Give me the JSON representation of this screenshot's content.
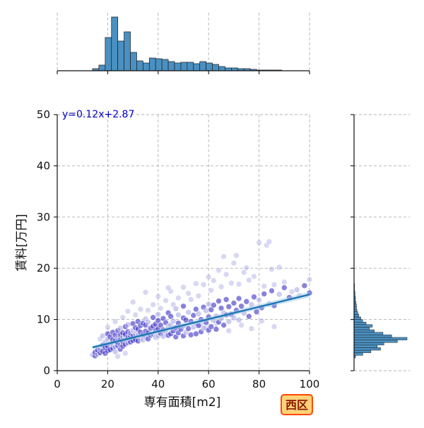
{
  "chart_data": {
    "type": "scatter",
    "xlabel": "専有面積[m2]",
    "ylabel": "賃料[万円]",
    "xlim": [
      0,
      100
    ],
    "ylim": [
      0,
      50
    ],
    "xticks": [
      "0",
      "20",
      "40",
      "60",
      "80",
      "100"
    ],
    "yticks": [
      "0",
      "10",
      "20",
      "30",
      "40",
      "50"
    ],
    "grid": true,
    "annotation": "y=0.12x+2.87",
    "ward_label": "西区",
    "regression": {
      "slope": 0.12,
      "intercept": 2.87,
      "x_range": [
        14,
        100
      ]
    },
    "colors": {
      "points": "#3a2fc4",
      "points_light": "#8f8fdc",
      "line": "#1f77b4",
      "hist": "#4a90c2",
      "ci": "#a6cbe8"
    },
    "points": [
      [
        14,
        3.1
      ],
      [
        15,
        2.9
      ],
      [
        15,
        3.6
      ],
      [
        16,
        3.2
      ],
      [
        16,
        4.0
      ],
      [
        17,
        3.5
      ],
      [
        17,
        4.2
      ],
      [
        18,
        3.8
      ],
      [
        18,
        5.0
      ],
      [
        18,
        6.8
      ],
      [
        19,
        3.4
      ],
      [
        19,
        4.5
      ],
      [
        19,
        5.6
      ],
      [
        20,
        3.9
      ],
      [
        20,
        4.8
      ],
      [
        20,
        6.2
      ],
      [
        20,
        7.2
      ],
      [
        21,
        4.1
      ],
      [
        21,
        5.3
      ],
      [
        21,
        6.6
      ],
      [
        22,
        4.4
      ],
      [
        22,
        5.1
      ],
      [
        22,
        6.0
      ],
      [
        22,
        7.5
      ],
      [
        23,
        4.6
      ],
      [
        23,
        5.8
      ],
      [
        23,
        6.9
      ],
      [
        23,
        3.7
      ],
      [
        24,
        4.9
      ],
      [
        24,
        5.5
      ],
      [
        24,
        6.3
      ],
      [
        24,
        7.8
      ],
      [
        25,
        4.2
      ],
      [
        25,
        5.0
      ],
      [
        25,
        6.1
      ],
      [
        25,
        7.0
      ],
      [
        25,
        8.3
      ],
      [
        26,
        4.8
      ],
      [
        26,
        5.7
      ],
      [
        26,
        6.5
      ],
      [
        26,
        7.4
      ],
      [
        27,
        5.2
      ],
      [
        27,
        6.0
      ],
      [
        27,
        7.1
      ],
      [
        27,
        8.6
      ],
      [
        28,
        5.4
      ],
      [
        28,
        6.4
      ],
      [
        28,
        7.6
      ],
      [
        28,
        9.0
      ],
      [
        29,
        5.6
      ],
      [
        29,
        6.8
      ],
      [
        29,
        7.3
      ],
      [
        30,
        5.9
      ],
      [
        30,
        6.7
      ],
      [
        30,
        7.9
      ],
      [
        30,
        9.2
      ],
      [
        31,
        6.1
      ],
      [
        31,
        7.2
      ],
      [
        31,
        8.4
      ],
      [
        32,
        5.8
      ],
      [
        32,
        6.9
      ],
      [
        32,
        8.1
      ],
      [
        32,
        9.6
      ],
      [
        33,
        6.3
      ],
      [
        33,
        7.5
      ],
      [
        33,
        8.8
      ],
      [
        34,
        6.0
      ],
      [
        34,
        7.0
      ],
      [
        34,
        9.3
      ],
      [
        35,
        6.6
      ],
      [
        35,
        7.7
      ],
      [
        35,
        8.9
      ],
      [
        35,
        10.1
      ],
      [
        36,
        6.2
      ],
      [
        36,
        7.4
      ],
      [
        36,
        9.5
      ],
      [
        37,
        6.9
      ],
      [
        37,
        8.3
      ],
      [
        38,
        7.1
      ],
      [
        38,
        8.7
      ],
      [
        38,
        10.4
      ],
      [
        39,
        6.5
      ],
      [
        39,
        7.9
      ],
      [
        39,
        9.1
      ],
      [
        40,
        6.8
      ],
      [
        40,
        8.2
      ],
      [
        40,
        9.8
      ],
      [
        40,
        11.0
      ],
      [
        41,
        7.3
      ],
      [
        41,
        8.9
      ],
      [
        42,
        6.7
      ],
      [
        42,
        8.0
      ],
      [
        42,
        10.2
      ],
      [
        43,
        7.6
      ],
      [
        43,
        9.4
      ],
      [
        44,
        6.9
      ],
      [
        44,
        8.6
      ],
      [
        44,
        11.3
      ],
      [
        45,
        7.2
      ],
      [
        45,
        9.0
      ],
      [
        45,
        10.6
      ],
      [
        46,
        7.8
      ],
      [
        46,
        9.7
      ],
      [
        47,
        6.6
      ],
      [
        47,
        8.4
      ],
      [
        47,
        12.1
      ],
      [
        48,
        7.4
      ],
      [
        48,
        9.3
      ],
      [
        48,
        10.9
      ],
      [
        49,
        8.1
      ],
      [
        50,
        6.8
      ],
      [
        50,
        8.7
      ],
      [
        50,
        10.3
      ],
      [
        50,
        12.6
      ],
      [
        51,
        7.5
      ],
      [
        51,
        9.9
      ],
      [
        52,
        8.2
      ],
      [
        52,
        11.4
      ],
      [
        53,
        7.0
      ],
      [
        53,
        9.6
      ],
      [
        54,
        8.5
      ],
      [
        54,
        10.8
      ],
      [
        55,
        7.2
      ],
      [
        55,
        9.2
      ],
      [
        55,
        12.0
      ],
      [
        56,
        8.8
      ],
      [
        56,
        11.1
      ],
      [
        57,
        7.6
      ],
      [
        57,
        10.0
      ],
      [
        58,
        8.3
      ],
      [
        58,
        12.4
      ],
      [
        59,
        9.4
      ],
      [
        59,
        11.7
      ],
      [
        60,
        7.9
      ],
      [
        60,
        10.5
      ],
      [
        60,
        13.0
      ],
      [
        61,
        8.6
      ],
      [
        61,
        11.9
      ],
      [
        62,
        9.8
      ],
      [
        62,
        12.8
      ],
      [
        63,
        8.1
      ],
      [
        63,
        10.7
      ],
      [
        64,
        9.5
      ],
      [
        64,
        13.6
      ],
      [
        65,
        10.2
      ],
      [
        65,
        12.2
      ],
      [
        66,
        8.9
      ],
      [
        66,
        11.3
      ],
      [
        67,
        10.9
      ],
      [
        67,
        13.9
      ],
      [
        68,
        9.6
      ],
      [
        68,
        12.5
      ],
      [
        69,
        11.0
      ],
      [
        70,
        10.3
      ],
      [
        70,
        13.2
      ],
      [
        71,
        11.8
      ],
      [
        72,
        9.9
      ],
      [
        72,
        14.1
      ],
      [
        73,
        12.6
      ],
      [
        74,
        11.2
      ],
      [
        75,
        13.5
      ],
      [
        76,
        10.6
      ],
      [
        77,
        12.9
      ],
      [
        78,
        14.4
      ],
      [
        79,
        11.5
      ],
      [
        80,
        13.8
      ],
      [
        81,
        12.3
      ],
      [
        82,
        15.0
      ],
      [
        84,
        13.1
      ],
      [
        85,
        15.6
      ],
      [
        86,
        12.7
      ],
      [
        88,
        14.9
      ],
      [
        90,
        16.2
      ],
      [
        92,
        14.3
      ],
      [
        95,
        15.8
      ],
      [
        98,
        16.6
      ],
      [
        100,
        15.2
      ]
    ],
    "faint_points": [
      [
        17,
        6.2
      ],
      [
        20,
        8.5
      ],
      [
        23,
        9.6
      ],
      [
        26,
        10.4
      ],
      [
        28,
        11.6
      ],
      [
        31,
        10.9
      ],
      [
        33,
        12.0
      ],
      [
        36,
        11.8
      ],
      [
        38,
        12.9
      ],
      [
        40,
        14.5
      ],
      [
        41,
        12.2
      ],
      [
        43,
        13.7
      ],
      [
        45,
        15.5
      ],
      [
        46,
        12.9
      ],
      [
        48,
        14.2
      ],
      [
        50,
        16.3
      ],
      [
        52,
        15.1
      ],
      [
        53,
        13.9
      ],
      [
        55,
        17.0
      ],
      [
        56,
        14.6
      ],
      [
        58,
        16.8
      ],
      [
        60,
        18.3
      ],
      [
        61,
        15.7
      ],
      [
        62,
        17.6
      ],
      [
        64,
        19.6
      ],
      [
        65,
        16.4
      ],
      [
        66,
        22.3
      ],
      [
        67,
        18.8
      ],
      [
        69,
        17.1
      ],
      [
        70,
        21.0
      ],
      [
        71,
        22.5
      ],
      [
        72,
        16.9
      ],
      [
        74,
        19.2
      ],
      [
        75,
        20.1
      ],
      [
        76,
        17.7
      ],
      [
        78,
        18.4
      ],
      [
        80,
        25.0
      ],
      [
        82,
        16.5
      ],
      [
        83,
        24.5
      ],
      [
        84,
        25.2
      ],
      [
        85,
        19.8
      ],
      [
        86,
        16.8
      ],
      [
        88,
        20.2
      ],
      [
        90,
        17.3
      ],
      [
        93,
        15.4
      ],
      [
        96,
        14.7
      ],
      [
        100,
        17.8
      ],
      [
        35,
        15.3
      ],
      [
        30,
        13.4
      ],
      [
        44,
        16.2
      ],
      [
        57,
        9.0
      ],
      [
        59,
        8.4
      ],
      [
        63,
        9.2
      ],
      [
        68,
        7.8
      ],
      [
        73,
        8.9
      ],
      [
        77,
        8.2
      ],
      [
        81,
        9.7
      ],
      [
        86,
        8.6
      ],
      [
        24,
        2.8
      ],
      [
        27,
        3.4
      ]
    ],
    "marginal_x": {
      "bin_edges": [
        14,
        16.5,
        19,
        21.5,
        24,
        26.5,
        29,
        31.5,
        34,
        36.5,
        39,
        41.5,
        44,
        46.5,
        49,
        51.5,
        54,
        56.5,
        59,
        61.5,
        64,
        66.5,
        69,
        71.5,
        74,
        76.5,
        79,
        81.5,
        84,
        86.5,
        89,
        91.5
      ],
      "counts": [
        3,
        8,
        47,
        76,
        42,
        55,
        26,
        14,
        11,
        18,
        17,
        16,
        13,
        11,
        12,
        12,
        10,
        13,
        11,
        9,
        6,
        4,
        4,
        3,
        3,
        2,
        1,
        1,
        1,
        1,
        0
      ]
    },
    "marginal_y": {
      "bin_edges": [
        2.5,
        3.0,
        3.5,
        4.0,
        4.5,
        5.0,
        5.5,
        6.0,
        6.5,
        7.0,
        7.5,
        8.0,
        8.5,
        9.0,
        9.5,
        10.0,
        10.5,
        11.0,
        11.5,
        12.0,
        12.5,
        13.0,
        13.5,
        14.0,
        14.5,
        15.0,
        15.5,
        16.0,
        16.5,
        17.0
      ],
      "counts": [
        3,
        18,
        35,
        55,
        48,
        62,
        90,
        110,
        78,
        60,
        42,
        32,
        38,
        25,
        18,
        14,
        10,
        8,
        6,
        5,
        5,
        4,
        3,
        3,
        2,
        2,
        1,
        1,
        1
      ]
    }
  }
}
